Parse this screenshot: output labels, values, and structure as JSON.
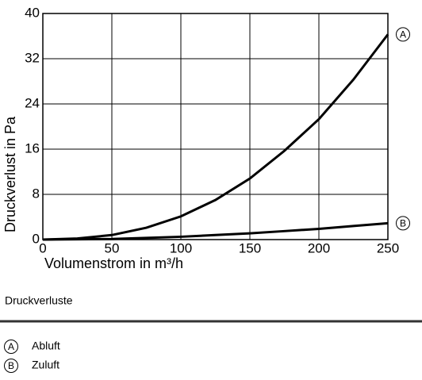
{
  "chart_data": {
    "type": "line",
    "x_label": "Volumenstrom in m³/h",
    "y_label": "Druckverlust in Pa",
    "x": [
      0,
      25,
      50,
      75,
      100,
      125,
      150,
      175,
      200,
      225,
      250
    ],
    "series": [
      {
        "name": "Abluft",
        "marker": "A",
        "color": "#000000",
        "values": [
          0,
          0.2,
          0.8,
          2.1,
          4.1,
          7.0,
          10.8,
          15.7,
          21.3,
          28.3,
          36.3
        ]
      },
      {
        "name": "Zuluft",
        "marker": "B",
        "color": "#000000",
        "values": [
          0,
          0.05,
          0.1,
          0.3,
          0.5,
          0.8,
          1.1,
          1.5,
          1.9,
          2.4,
          2.9
        ]
      }
    ],
    "xlim": [
      0,
      250
    ],
    "xticks": [
      0,
      50,
      100,
      150,
      200,
      250
    ],
    "ylim": [
      0,
      40
    ],
    "yticks": [
      0,
      8,
      16,
      24,
      32,
      40
    ],
    "grid": true
  },
  "caption": "Druckverluste"
}
